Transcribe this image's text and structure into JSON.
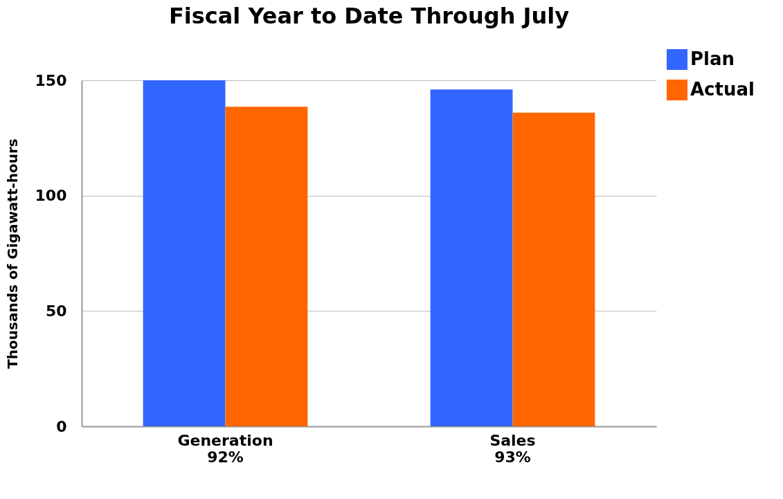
{
  "chart_data": {
    "type": "bar",
    "title": "Fiscal Year to Date Through July",
    "ylabel": "Thousands of Gigawatt-hours",
    "categories": [
      "Generation\n92%",
      "Sales\n93%"
    ],
    "series": [
      {
        "name": "Plan",
        "color": "#3366ff",
        "values": [
          150,
          146
        ]
      },
      {
        "name": "Actual",
        "color": "#ff6600",
        "values": [
          138.5,
          136
        ]
      }
    ],
    "ylim": [
      0,
      150
    ],
    "yticks": [
      0,
      50,
      100,
      150
    ],
    "grid": "y",
    "legend": "top right"
  }
}
